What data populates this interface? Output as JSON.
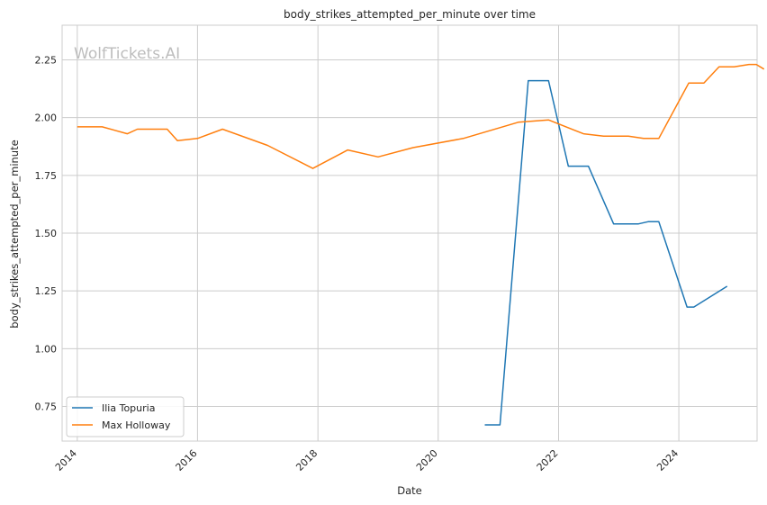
{
  "chart_data": {
    "type": "line",
    "title": "body_strikes_attempted_per_minute over time",
    "xlabel": "Date",
    "ylabel": "body_strikes_attempted_per_minute",
    "watermark": "WolfTickets.AI",
    "xlim": [
      "2013-10-01",
      "2025-04-20"
    ],
    "ylim": [
      0.6,
      2.4
    ],
    "x_ticks": [
      "2014",
      "2016",
      "2018",
      "2020",
      "2022",
      "2024"
    ],
    "y_ticks": [
      "0.75",
      "1.00",
      "1.25",
      "1.50",
      "1.75",
      "2.00",
      "2.25"
    ],
    "grid": true,
    "legend_position": "lower-left",
    "series": [
      {
        "name": "Ilia Topuria",
        "color": "#1f77b4",
        "points": [
          [
            "2020-10-10",
            0.67
          ],
          [
            "2021-01-10",
            0.67
          ],
          [
            "2021-07-01",
            2.16
          ],
          [
            "2021-11-01",
            2.16
          ],
          [
            "2022-03-01",
            1.79
          ],
          [
            "2022-07-01",
            1.79
          ],
          [
            "2022-12-01",
            1.54
          ],
          [
            "2023-05-01",
            1.54
          ],
          [
            "2023-07-01",
            1.55
          ],
          [
            "2023-09-01",
            1.55
          ],
          [
            "2024-02-20",
            1.18
          ],
          [
            "2024-04-01",
            1.18
          ],
          [
            "2024-10-20",
            1.27
          ]
        ]
      },
      {
        "name": "Max Holloway",
        "color": "#ff7f0e",
        "points": [
          [
            "2014-01-01",
            1.96
          ],
          [
            "2014-06-01",
            1.96
          ],
          [
            "2014-11-01",
            1.93
          ],
          [
            "2015-01-01",
            1.95
          ],
          [
            "2015-07-01",
            1.95
          ],
          [
            "2015-09-01",
            1.9
          ],
          [
            "2016-01-01",
            1.91
          ],
          [
            "2016-06-01",
            1.95
          ],
          [
            "2017-03-01",
            1.88
          ],
          [
            "2017-12-01",
            1.78
          ],
          [
            "2018-07-01",
            1.86
          ],
          [
            "2019-01-01",
            1.83
          ],
          [
            "2019-08-01",
            1.87
          ],
          [
            "2020-06-01",
            1.91
          ],
          [
            "2021-05-01",
            1.98
          ],
          [
            "2021-11-01",
            1.99
          ],
          [
            "2022-06-01",
            1.93
          ],
          [
            "2022-10-01",
            1.92
          ],
          [
            "2023-03-01",
            1.92
          ],
          [
            "2023-06-01",
            1.91
          ],
          [
            "2023-09-01",
            1.91
          ],
          [
            "2024-03-01",
            2.15
          ],
          [
            "2024-06-01",
            2.15
          ],
          [
            "2024-09-01",
            2.22
          ],
          [
            "2024-12-01",
            2.22
          ],
          [
            "2025-03-01",
            2.23
          ],
          [
            "2025-04-15",
            2.23
          ],
          [
            "2025-06-01",
            2.21
          ]
        ]
      }
    ]
  }
}
